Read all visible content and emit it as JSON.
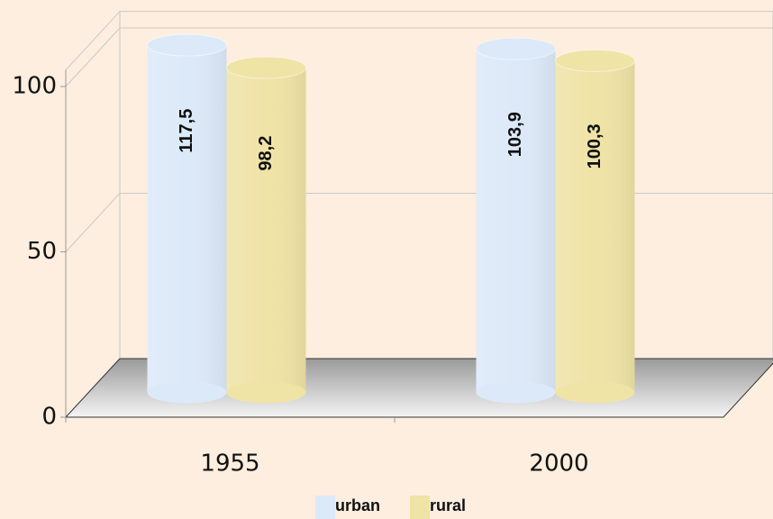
{
  "chart_data": {
    "type": "bar3d",
    "categories": [
      "1955",
      "2000"
    ],
    "series": [
      {
        "name": "urban",
        "color": "#dce9f8",
        "values": [
          117.5,
          103.9
        ],
        "value_labels": [
          "117,5",
          "103,9"
        ]
      },
      {
        "name": "rural",
        "color": "#efe3a6",
        "values": [
          98.2,
          100.3
        ],
        "value_labels": [
          "98,2",
          "100,3"
        ]
      }
    ],
    "ylim": [
      0,
      105
    ],
    "yticks": [
      0,
      50,
      100
    ],
    "grid": true
  }
}
